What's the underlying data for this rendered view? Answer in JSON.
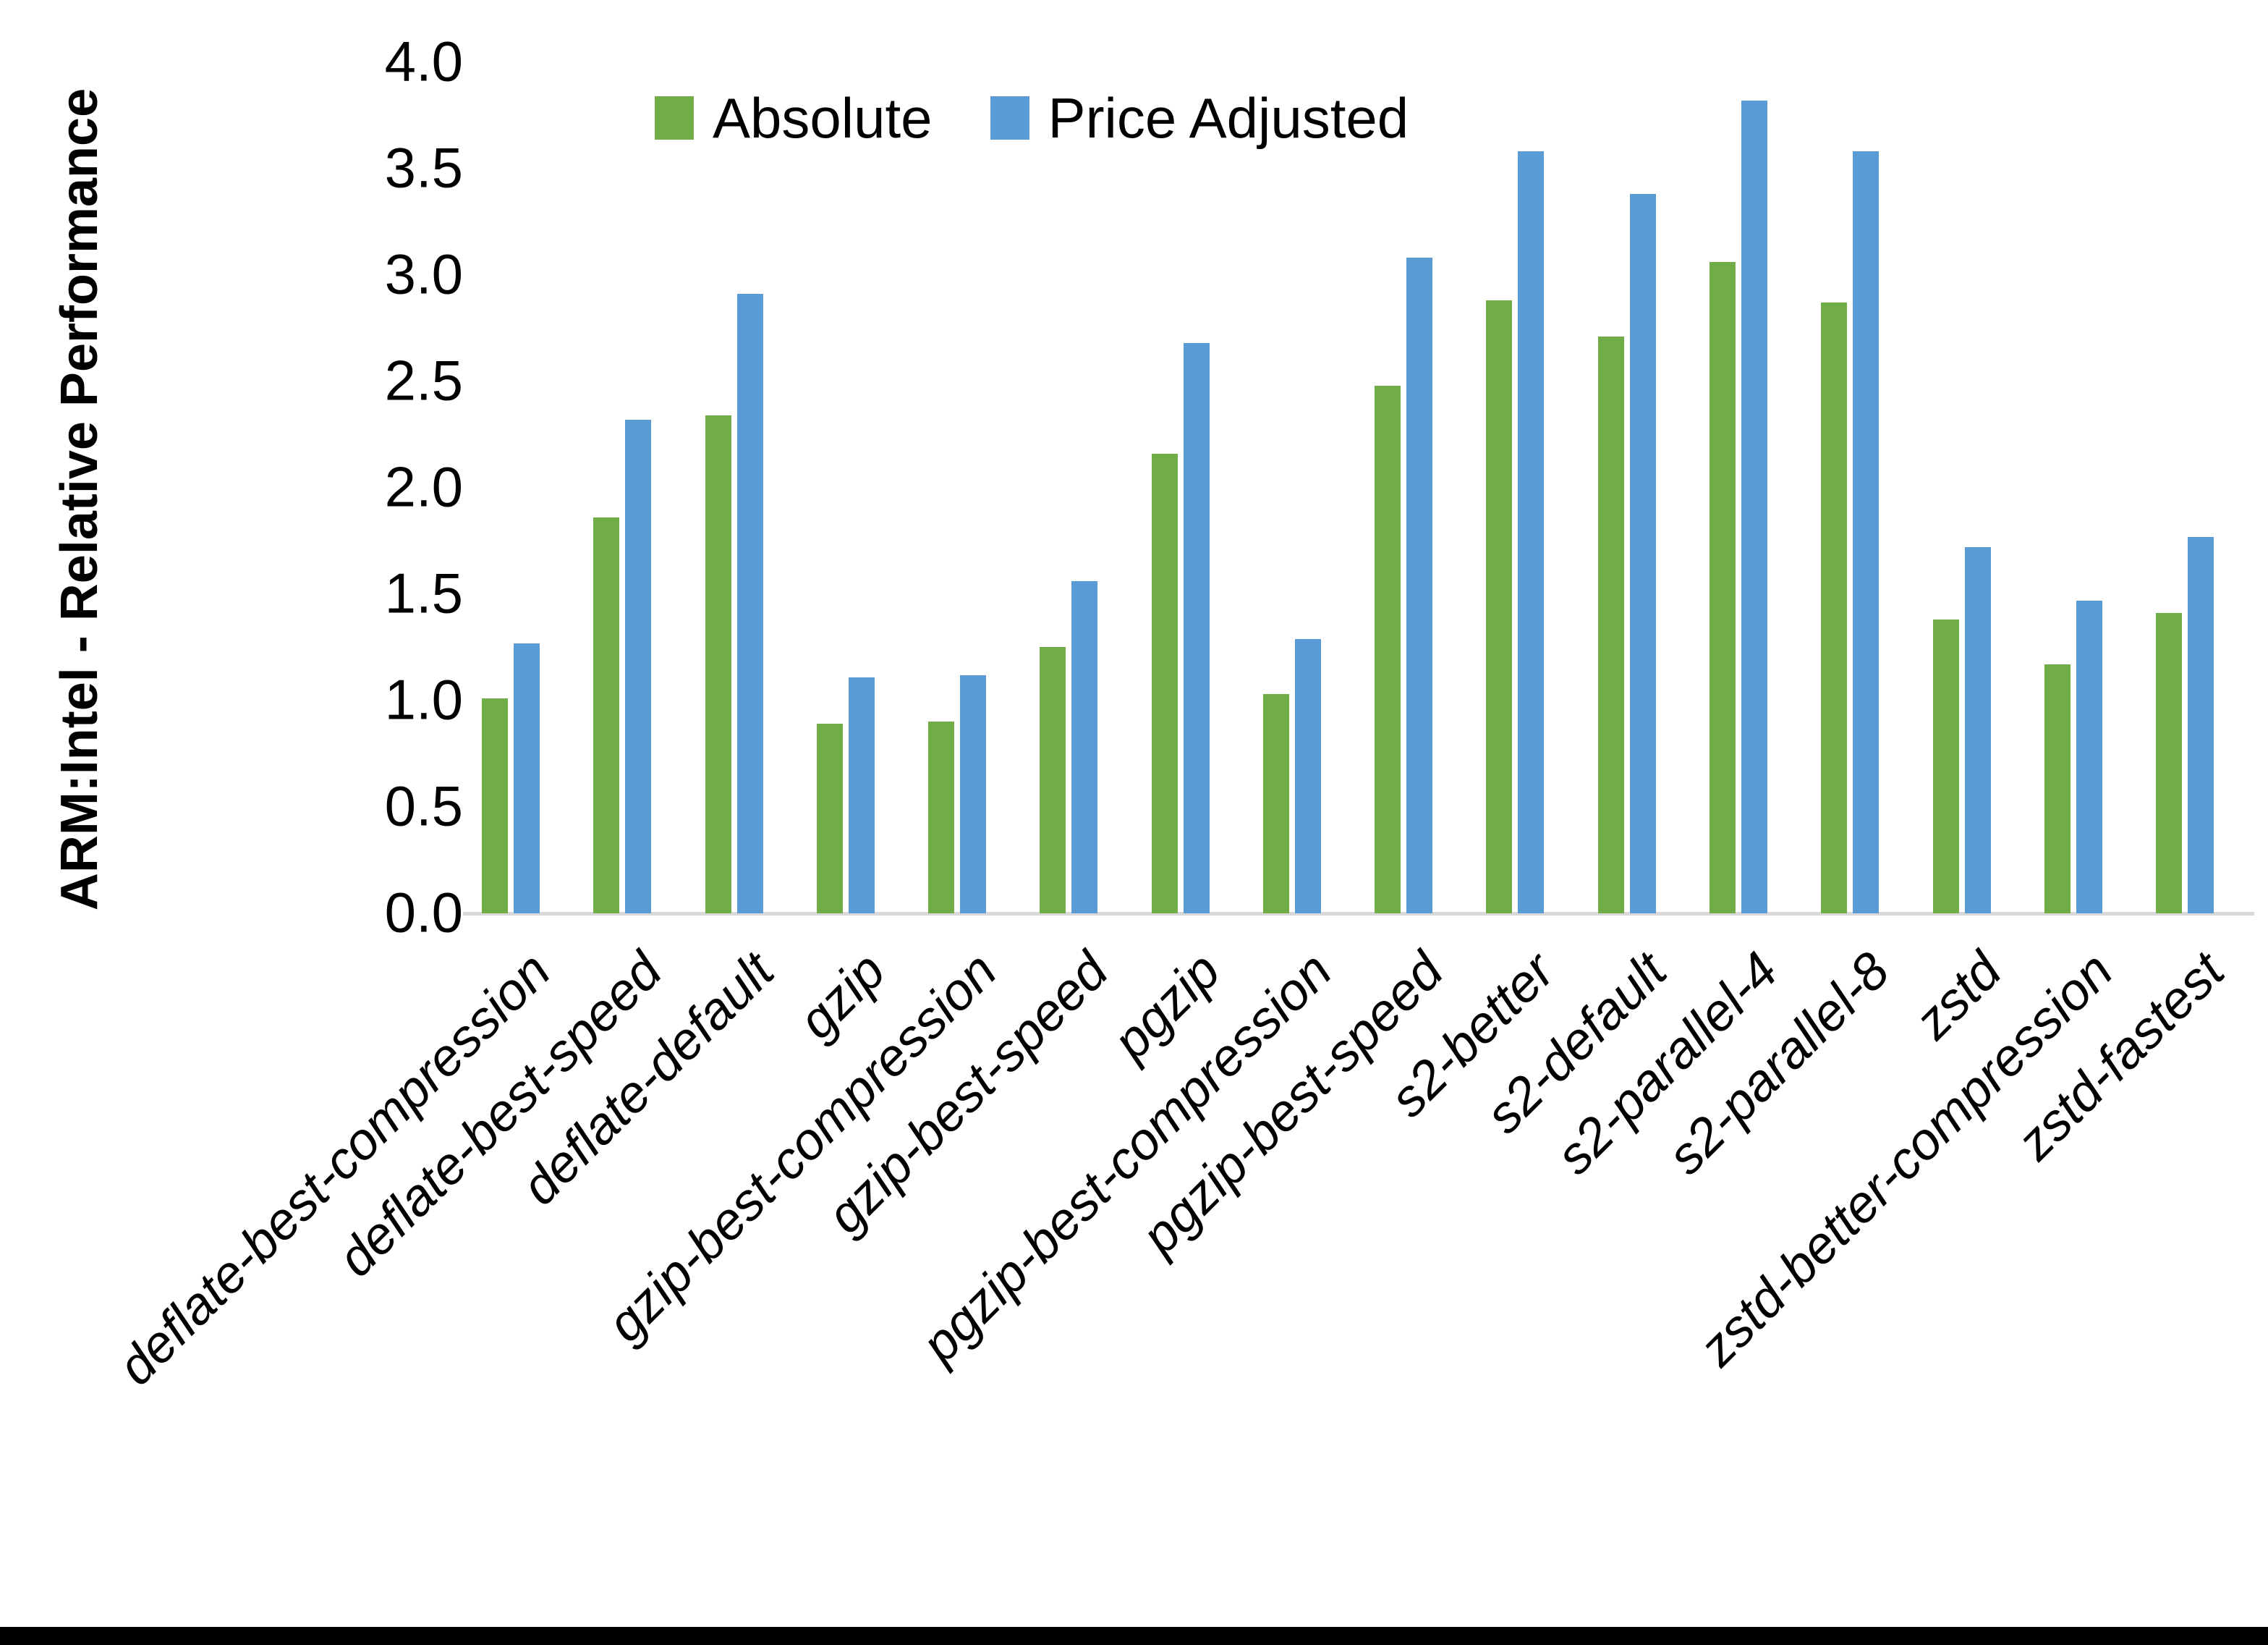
{
  "chart_data": {
    "type": "bar",
    "title": "",
    "xlabel": "",
    "ylabel": "ARM:Intel - Relative Performance",
    "ylim": [
      0.0,
      4.0
    ],
    "ytick_step": 0.5,
    "ytick_labels": [
      "0.0",
      "0.5",
      "1.0",
      "1.5",
      "2.0",
      "2.5",
      "3.0",
      "3.5",
      "4.0"
    ],
    "grid": false,
    "legend_position": "top-center",
    "axis_line_color": "#D9D9D9",
    "background": "#FFFFFF",
    "categories": [
      "deflate-best-compression",
      "deflate-best-speed",
      "deflate-default",
      "gzip",
      "gzip-best-compression",
      "gzip-best-speed",
      "pgzip",
      "pgzip-best-compression",
      "pgzip-best-speed",
      "s2-better",
      "s2-default",
      "s2-parallel-4",
      "s2-parallel-8",
      "zstd",
      "zstd-better-compression",
      "zstd-fastest"
    ],
    "series": [
      {
        "name": "Absolute",
        "color": "#70AD47",
        "values": [
          1.01,
          1.86,
          2.34,
          0.89,
          0.9,
          1.25,
          2.16,
          1.03,
          2.48,
          2.88,
          2.71,
          3.06,
          2.87,
          1.38,
          1.17,
          1.41
        ]
      },
      {
        "name": "Price Adjusted",
        "color": "#5B9BD5",
        "values": [
          1.27,
          2.32,
          2.91,
          1.11,
          1.12,
          1.56,
          2.68,
          1.29,
          3.08,
          3.58,
          3.38,
          3.82,
          3.58,
          1.72,
          1.47,
          1.77
        ]
      }
    ]
  }
}
